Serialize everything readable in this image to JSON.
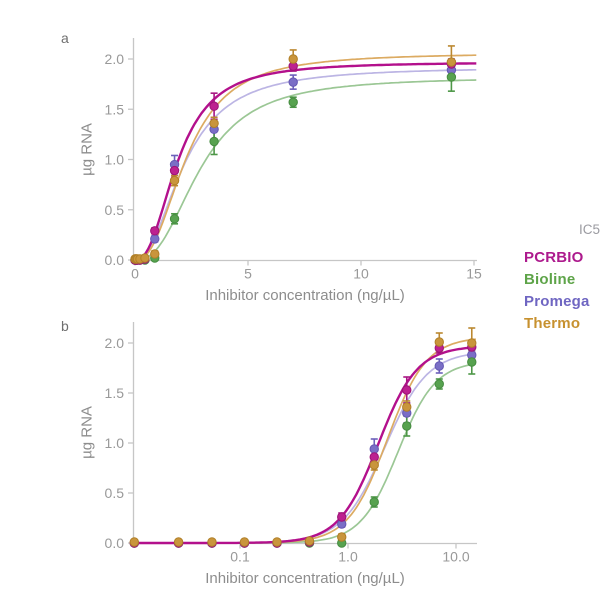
{
  "panel_a": {
    "label": "a",
    "xlabel": "Inhibitor concentration (ng/µL)",
    "ylabel": "µg RNA"
  },
  "panel_b": {
    "label": "b",
    "xlabel": "Inhibitor concentration (ng/µL)",
    "ylabel": "µg RNA"
  },
  "legend": {
    "title": "IC5",
    "title_color": "#9b9ba1",
    "items": [
      {
        "label": "PCRBIO",
        "color": "#ad1a8d"
      },
      {
        "label": "Bioline",
        "color": "#5ea449"
      },
      {
        "label": "Promega",
        "color": "#6f66c2"
      },
      {
        "label": "Thermo",
        "color": "#c7912f"
      }
    ]
  },
  "style": {
    "axis_color": "#c6c6c6",
    "tick_label_color": "#999999",
    "axis_title_color": "#8d8d8d"
  },
  "chart_data": [
    {
      "type": "line",
      "panel": "a",
      "xscale": "linear",
      "xlabel": "Inhibitor concentration (ng/µL)",
      "ylabel": "µg RNA",
      "xlim": [
        0,
        15.2
      ],
      "ylim": [
        0,
        2.15
      ],
      "xticks": [
        {
          "v": 0,
          "label": "0"
        },
        {
          "v": 5,
          "label": "5"
        },
        {
          "v": 10,
          "label": "10"
        },
        {
          "v": 15,
          "label": "15"
        }
      ],
      "yticks": [
        {
          "v": 0,
          "label": "0.0"
        },
        {
          "v": 0.5,
          "label": "0.5"
        },
        {
          "v": 1,
          "label": "1.0"
        },
        {
          "v": 1.5,
          "label": "1.5"
        },
        {
          "v": 2,
          "label": "2.0"
        }
      ],
      "x": [
        0,
        0.027,
        0.055,
        0.11,
        0.22,
        0.44,
        0.875,
        1.75,
        3.5,
        7,
        14
      ],
      "series": [
        {
          "name": "PCRBIO",
          "point_color": "#bd2190",
          "point_stroke": "#9c1377",
          "error_color": "#a81683",
          "curve_color": "#b3108c",
          "curve_width": 2.4,
          "values": [
            0,
            0,
            0,
            0,
            0,
            0.01,
            0.29,
            0.89,
            1.53,
            1.93,
            1.95
          ],
          "errors": [
            0,
            0,
            0,
            0,
            0,
            0,
            0.03,
            0.08,
            0.13,
            0.05,
            0.05
          ],
          "fit": {
            "emax": 1.97,
            "ec50": 1.9,
            "hill": 2.4
          }
        },
        {
          "name": "Bioline",
          "point_color": "#57a24f",
          "point_stroke": "#468c41",
          "error_color": "#4d9747",
          "curve_color": "#9bc795",
          "curve_width": 1.7,
          "values": [
            0,
            0,
            0,
            0,
            0,
            0,
            0.02,
            0.41,
            1.18,
            1.57,
            1.82
          ],
          "errors": [
            0,
            0,
            0,
            0,
            0,
            0,
            0.02,
            0.05,
            0.13,
            0.05,
            0.14
          ],
          "fit": {
            "emax": 1.82,
            "ec50": 2.9,
            "hill": 2.5
          }
        },
        {
          "name": "Promega",
          "point_color": "#7a6ec6",
          "point_stroke": "#6457b2",
          "error_color": "#6c60bb",
          "curve_color": "#bcb5e4",
          "curve_width": 1.7,
          "values": [
            0,
            0,
            0,
            0,
            0,
            0.01,
            0.21,
            0.95,
            1.3,
            1.77,
            1.89
          ],
          "errors": [
            0,
            0,
            0,
            0,
            0,
            0,
            0.03,
            0.09,
            0.1,
            0.07,
            0.05
          ],
          "fit": {
            "emax": 1.92,
            "ec50": 2.2,
            "hill": 2.2
          }
        },
        {
          "name": "Thermo",
          "point_color": "#c9953c",
          "point_stroke": "#b07f27",
          "error_color": "#bb8830",
          "curve_color": "#dcab62",
          "curve_width": 1.7,
          "values": [
            0.01,
            0.01,
            0.01,
            0.01,
            0.01,
            0.02,
            0.06,
            0.79,
            1.36,
            2.0,
            1.97
          ],
          "errors": [
            0,
            0,
            0,
            0,
            0,
            0,
            0.03,
            0.05,
            0.06,
            0.09,
            0.16
          ],
          "fit": {
            "emax": 2.06,
            "ec50": 2.3,
            "hill": 2.4
          }
        }
      ]
    },
    {
      "type": "line",
      "panel": "b",
      "xscale": "log",
      "xlabel": "Inhibitor concentration (ng/µL)",
      "ylabel": "µg RNA",
      "xlim": [
        0.01,
        15.3
      ],
      "ylim": [
        0,
        2.2
      ],
      "xticks": [
        {
          "v": 0.1,
          "label": "0.1"
        },
        {
          "v": 1,
          "label": "1.0"
        },
        {
          "v": 10,
          "label": "10.0"
        }
      ],
      "yticks": [
        {
          "v": 0,
          "label": "0.0"
        },
        {
          "v": 0.5,
          "label": "0.5"
        },
        {
          "v": 1,
          "label": "1.0"
        },
        {
          "v": 1.5,
          "label": "1.5"
        },
        {
          "v": 2,
          "label": "2.0"
        }
      ],
      "x": [
        0,
        0.027,
        0.055,
        0.11,
        0.22,
        0.44,
        0.875,
        1.75,
        3.5,
        7,
        14
      ],
      "series": [
        {
          "name": "PCRBIO",
          "point_color": "#bd2190",
          "point_stroke": "#9c1377",
          "error_color": "#a81683",
          "curve_color": "#b3108c",
          "curve_width": 2.4,
          "values": [
            0,
            0,
            0,
            0,
            0,
            0.01,
            0.26,
            0.86,
            1.53,
            1.95,
            1.96
          ],
          "errors": [
            0,
            0,
            0,
            0,
            0,
            0,
            0.04,
            0.08,
            0.13,
            0.05,
            0.05
          ],
          "fit": {
            "emax": 1.97,
            "ec50": 1.9,
            "hill": 2.4
          }
        },
        {
          "name": "Bioline",
          "point_color": "#57a24f",
          "point_stroke": "#468c41",
          "error_color": "#4d9747",
          "curve_color": "#9bc795",
          "curve_width": 1.7,
          "values": [
            0,
            0,
            0,
            0,
            0,
            0,
            0.0,
            0.41,
            1.17,
            1.59,
            1.81
          ],
          "errors": [
            0,
            0,
            0,
            0,
            0,
            0,
            0.02,
            0.05,
            0.1,
            0.05,
            0.12
          ],
          "fit": {
            "emax": 1.82,
            "ec50": 2.9,
            "hill": 2.5
          }
        },
        {
          "name": "Promega",
          "point_color": "#7a6ec6",
          "point_stroke": "#6457b2",
          "error_color": "#6c60bb",
          "curve_color": "#bcb5e4",
          "curve_width": 1.7,
          "values": [
            0,
            0,
            0,
            0,
            0,
            0.01,
            0.19,
            0.94,
            1.3,
            1.77,
            1.88
          ],
          "errors": [
            0,
            0,
            0,
            0,
            0,
            0,
            0.03,
            0.1,
            0.1,
            0.07,
            0.05
          ],
          "fit": {
            "emax": 1.92,
            "ec50": 2.2,
            "hill": 2.2
          }
        },
        {
          "name": "Thermo",
          "point_color": "#c9953c",
          "point_stroke": "#b07f27",
          "error_color": "#bb8830",
          "curve_color": "#dcab62",
          "curve_width": 1.7,
          "values": [
            0.01,
            0.01,
            0.01,
            0.01,
            0.01,
            0.02,
            0.06,
            0.78,
            1.36,
            2.01,
            2.0
          ],
          "errors": [
            0,
            0,
            0,
            0,
            0,
            0,
            0.03,
            0.05,
            0.06,
            0.09,
            0.15
          ],
          "fit": {
            "emax": 2.06,
            "ec50": 2.3,
            "hill": 2.4
          }
        }
      ]
    }
  ]
}
